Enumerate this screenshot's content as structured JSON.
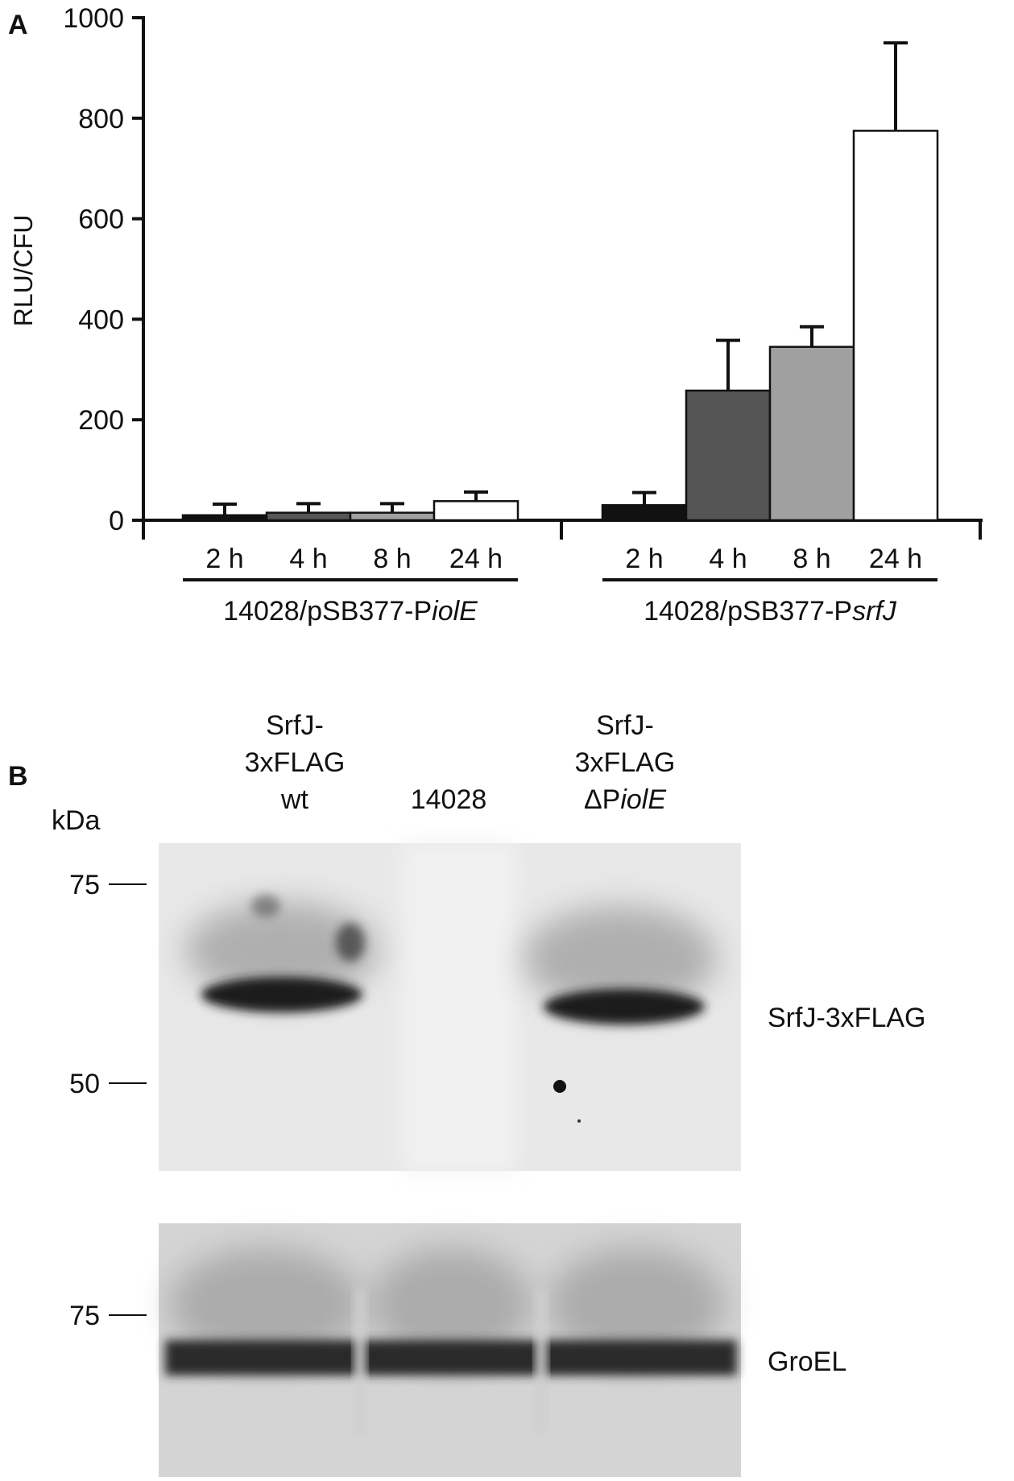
{
  "panel_a": {
    "label": "A",
    "chart_data": {
      "type": "bar",
      "ylabel": "RLU/CFU",
      "xlabel": "",
      "ylim": [
        0,
        1000
      ],
      "yticks": [
        0,
        200,
        400,
        600,
        800,
        1000
      ],
      "grid": false,
      "groups": [
        {
          "label_prefix": "14028/pSB377-P",
          "label_italic": "iolE",
          "categories": [
            "2 h",
            "4 h",
            "8 h",
            "24 h"
          ],
          "values": [
            10,
            15,
            15,
            38
          ],
          "errors": [
            22,
            18,
            18,
            18
          ]
        },
        {
          "label_prefix": "14028/pSB377-P",
          "label_italic": "srfJ",
          "categories": [
            "2 h",
            "4 h",
            "8 h",
            "24 h"
          ],
          "values": [
            30,
            258,
            345,
            775
          ],
          "errors": [
            25,
            100,
            40,
            175
          ]
        }
      ],
      "bar_colors": [
        "#111111",
        "#555555",
        "#a0a0a0",
        "#ffffff"
      ]
    }
  },
  "panel_b": {
    "label": "B",
    "lanes": [
      {
        "line1": "SrfJ-",
        "line2": "3xFLAG",
        "line3": "wt",
        "line3_italic": ""
      },
      {
        "line1": "",
        "line2": "",
        "line3": "14028",
        "line3_italic": ""
      },
      {
        "line1": "SrfJ-",
        "line2": "3xFLAG",
        "line3": "ΔP",
        "line3_italic": "iolE"
      }
    ],
    "kda_label": "kDa",
    "top_blot": {
      "markers": [
        "75",
        "50"
      ],
      "band_label": "SrfJ-3xFLAG"
    },
    "bottom_blot": {
      "markers": [
        "75"
      ],
      "band_label": "GroEL"
    }
  }
}
